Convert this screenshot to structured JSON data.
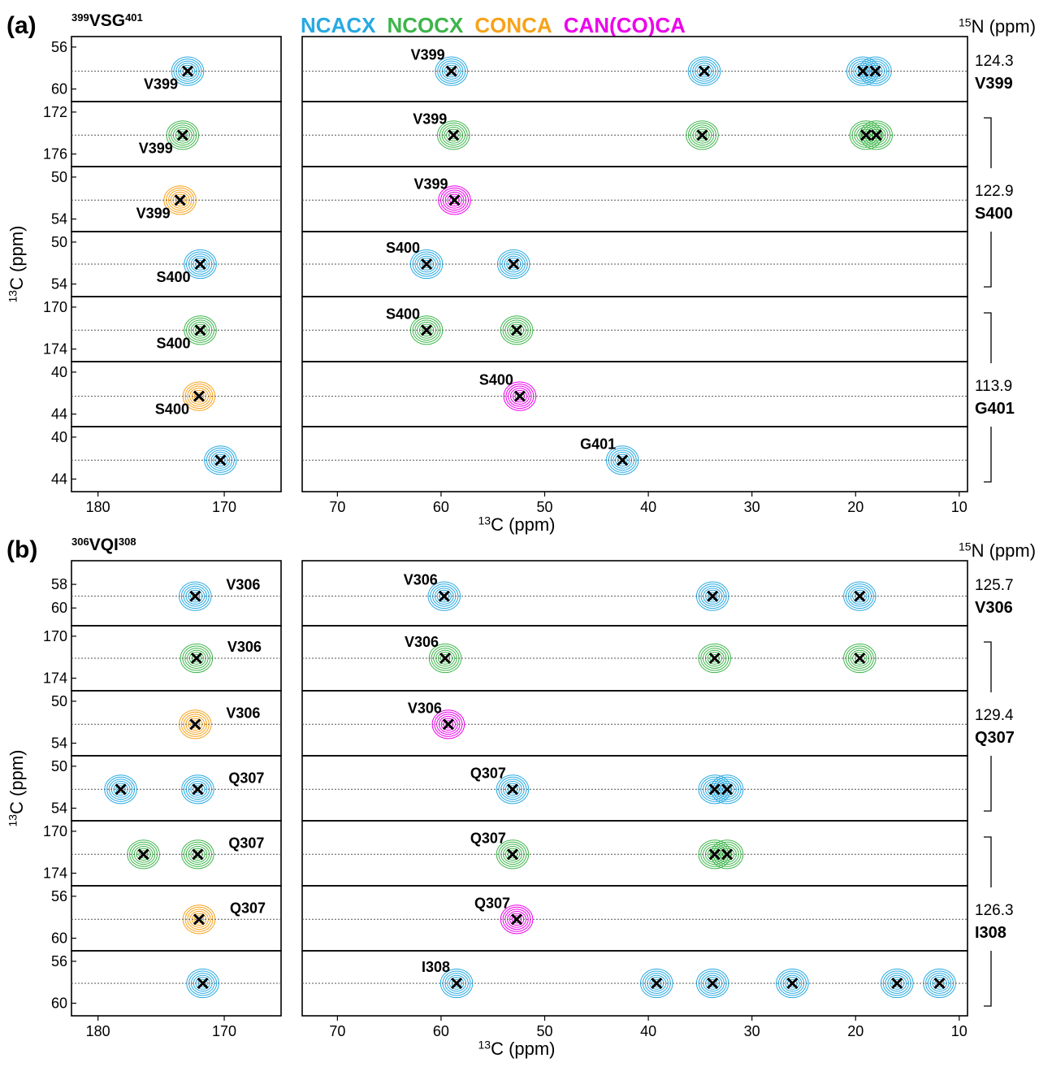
{
  "legend": [
    {
      "name": "NCACX",
      "color": "#27a9e1"
    },
    {
      "name": "NCOCX",
      "color": "#3db54a"
    },
    {
      "name": "CONCA",
      "color": "#f7a21b"
    },
    {
      "name": "CAN(CO)CA",
      "color": "#ec00ec"
    }
  ],
  "chart_data": [
    {
      "type": "strips",
      "label": "(a)",
      "title": {
        "pre": "399",
        "main": "VSG",
        "post": "401"
      },
      "n15_label": {
        "sup": "15",
        "text": "N (ppm)"
      },
      "ylabel": {
        "sup": "13",
        "text": "C (ppm)"
      },
      "xlabel": {
        "sup": "13",
        "text": "C (ppm)"
      },
      "left": {
        "xlim": [
          182.1,
          165.5
        ],
        "xticks": [
          180,
          170
        ]
      },
      "right": {
        "xlim": [
          73.4,
          9.2
        ],
        "xticks": [
          70,
          60,
          50,
          40,
          30,
          20,
          10
        ]
      },
      "strips": [
        {
          "left_series": 0,
          "right_series": 0,
          "ylim": [
            55,
            61.2
          ],
          "yticks": [
            56,
            60
          ],
          "ref": 58.3,
          "left_peaks": [
            172.9
          ],
          "right_peaks": [
            59.0,
            34.6,
            19.3,
            18.1
          ],
          "left_label": "V399",
          "right_label": "V399"
        },
        {
          "left_series": 1,
          "right_series": 1,
          "ylim": [
            171,
            177.2
          ],
          "yticks": [
            172,
            176
          ],
          "ref": 174.2,
          "left_peaks": [
            173.3
          ],
          "right_peaks": [
            58.8,
            34.8,
            19.0,
            18.0
          ],
          "left_label": "V399",
          "right_label": "V399"
        },
        {
          "left_series": 2,
          "right_series": 3,
          "ylim": [
            49,
            55.2
          ],
          "yticks": [
            50,
            54
          ],
          "ref": 52.2,
          "left_peaks": [
            173.5
          ],
          "right_peaks": [
            58.7
          ],
          "left_label": "V399",
          "right_label": "V399"
        },
        {
          "left_series": 0,
          "right_series": 0,
          "ylim": [
            49,
            55.2
          ],
          "yticks": [
            50,
            54
          ],
          "ref": 52.1,
          "left_peaks": [
            171.9
          ],
          "right_peaks": [
            61.4,
            53.0
          ],
          "left_label": "S400",
          "right_label": "S400"
        },
        {
          "left_series": 1,
          "right_series": 1,
          "ylim": [
            169,
            175.2
          ],
          "yticks": [
            170,
            174
          ],
          "ref": 172.2,
          "left_peaks": [
            171.9
          ],
          "right_peaks": [
            61.4,
            52.7
          ],
          "left_label": "S400",
          "right_label": "S400"
        },
        {
          "left_series": 2,
          "right_series": 3,
          "ylim": [
            39,
            45.2
          ],
          "yticks": [
            40,
            44
          ],
          "ref": 42.3,
          "left_peaks": [
            172.0
          ],
          "right_peaks": [
            52.4
          ],
          "left_label": "S400",
          "right_label": "S400"
        },
        {
          "left_series": 0,
          "right_series": 0,
          "ylim": [
            39,
            45.2
          ],
          "yticks": [
            40,
            44
          ],
          "ref": 42.2,
          "left_peaks": [
            170.3
          ],
          "right_peaks": [
            42.5
          ],
          "right_label": "G401"
        }
      ],
      "residues": [
        {
          "strip": 0,
          "shift": "124.3",
          "name": "V399"
        },
        {
          "strip": 2,
          "shift": "122.9",
          "name": "S400"
        },
        {
          "strip": 5,
          "shift": "113.9",
          "name": "G401"
        }
      ]
    },
    {
      "type": "strips",
      "label": "(b)",
      "title": {
        "pre": "306",
        "main": "VQI",
        "post": "308"
      },
      "n15_label": {
        "sup": "15",
        "text": "N (ppm)"
      },
      "ylabel": {
        "sup": "13",
        "text": "C (ppm)"
      },
      "xlabel": {
        "sup": "13",
        "text": "C (ppm)"
      },
      "left": {
        "xlim": [
          182.1,
          165.5
        ],
        "xticks": [
          180,
          170
        ]
      },
      "right": {
        "xlim": [
          73.4,
          9.2
        ],
        "xticks": [
          70,
          60,
          50,
          40,
          30,
          20,
          10
        ]
      },
      "strips": [
        {
          "left_series": 0,
          "right_series": 0,
          "ylim": [
            56,
            61.5
          ],
          "yticks": [
            58,
            60
          ],
          "ref": 59.0,
          "left_peaks": [
            172.3
          ],
          "right_peaks": [
            59.7,
            33.8,
            19.6
          ],
          "left_label": "V306",
          "right_label": "V306"
        },
        {
          "left_series": 1,
          "right_series": 1,
          "ylim": [
            169,
            175.2
          ],
          "yticks": [
            170,
            174
          ],
          "ref": 172.1,
          "left_peaks": [
            172.2
          ],
          "right_peaks": [
            59.6,
            33.6,
            19.6
          ],
          "left_label": "V306",
          "right_label": "V306"
        },
        {
          "left_series": 2,
          "right_series": 3,
          "ylim": [
            49,
            55.2
          ],
          "yticks": [
            50,
            54
          ],
          "ref": 52.2,
          "left_peaks": [
            172.3
          ],
          "right_peaks": [
            59.3
          ],
          "left_label": "V306",
          "right_label": "V306"
        },
        {
          "left_series": 0,
          "right_series": 0,
          "ylim": [
            49,
            55.2
          ],
          "yticks": [
            50,
            54
          ],
          "ref": 52.2,
          "left_peaks": [
            178.2,
            172.1
          ],
          "right_peaks": [
            53.1,
            33.6,
            32.4
          ],
          "left_label": "Q307",
          "right_label": "Q307"
        },
        {
          "left_series": 1,
          "right_series": 1,
          "ylim": [
            169,
            175.2
          ],
          "yticks": [
            170,
            174
          ],
          "ref": 172.2,
          "left_peaks": [
            176.4,
            172.1
          ],
          "right_peaks": [
            53.1,
            33.6,
            32.4
          ],
          "left_label": "Q307",
          "right_label": "Q307"
        },
        {
          "left_series": 2,
          "right_series": 3,
          "ylim": [
            55,
            61.2
          ],
          "yticks": [
            56,
            60
          ],
          "ref": 58.2,
          "left_peaks": [
            172.0
          ],
          "right_peaks": [
            52.7
          ],
          "left_label": "Q307",
          "right_label": "Q307"
        },
        {
          "left_series": 0,
          "right_series": 0,
          "ylim": [
            55,
            61.2
          ],
          "yticks": [
            56,
            60
          ],
          "ref": 58.1,
          "left_peaks": [
            171.7
          ],
          "right_peaks": [
            58.5,
            39.2,
            33.8,
            26.1,
            16.0,
            11.9
          ],
          "right_label": "I308"
        }
      ],
      "residues": [
        {
          "strip": 0,
          "shift": "125.7",
          "name": "V306"
        },
        {
          "strip": 2,
          "shift": "129.4",
          "name": "Q307"
        },
        {
          "strip": 5,
          "shift": "126.3",
          "name": "I308"
        }
      ]
    }
  ]
}
